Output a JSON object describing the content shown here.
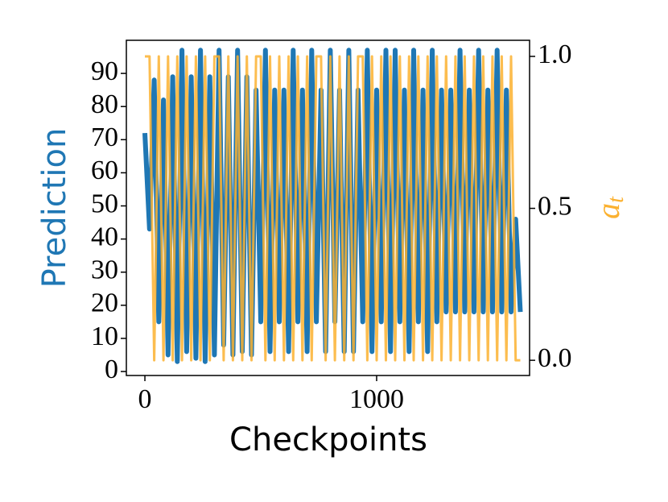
{
  "chart_data": {
    "type": "line",
    "xlabel": "Checkpoints",
    "ylabel": "Prediction",
    "y2label": [
      "a",
      "t"
    ],
    "x": [
      0,
      20,
      40,
      60,
      80,
      100,
      120,
      140,
      160,
      180,
      200,
      220,
      240,
      260,
      280,
      300,
      320,
      340,
      360,
      380,
      400,
      420,
      440,
      460,
      480,
      500,
      520,
      540,
      560,
      580,
      600,
      620,
      640,
      660,
      680,
      700,
      720,
      740,
      760,
      780,
      800,
      820,
      840,
      860,
      880,
      900,
      920,
      940,
      960,
      980,
      1000,
      1020,
      1040,
      1060,
      1080,
      1100,
      1120,
      1140,
      1160,
      1180,
      1200,
      1220,
      1240,
      1260,
      1280,
      1300,
      1320,
      1340,
      1360,
      1380,
      1400,
      1420,
      1440,
      1460,
      1480,
      1500,
      1520,
      1540,
      1560,
      1580,
      1600,
      1620
    ],
    "series": [
      {
        "name": "Prediction",
        "color": "#1f77b4",
        "values": [
          72,
          43,
          88,
          15,
          82,
          5,
          89,
          3,
          97,
          6,
          89,
          4,
          97,
          3,
          89,
          5,
          97,
          8,
          89,
          5,
          97,
          6,
          89,
          5,
          85,
          15,
          97,
          6,
          85,
          15,
          85,
          6,
          97,
          15,
          85,
          6,
          97,
          15,
          85,
          6,
          97,
          15,
          85,
          6,
          97,
          6,
          85,
          15,
          97,
          6,
          85,
          15,
          97,
          6,
          97,
          15,
          85,
          6,
          97,
          15,
          85,
          6,
          97,
          15,
          85,
          18,
          85,
          18,
          97,
          18,
          85,
          18,
          97,
          18,
          85,
          18,
          97,
          18,
          85,
          18,
          46,
          18
        ]
      },
      {
        "name": "a_t",
        "color": "#fbb130",
        "axis": "y2",
        "values": [
          1,
          1,
          0,
          1,
          0,
          1,
          0,
          1,
          0,
          1,
          0,
          1,
          0,
          1,
          0,
          1,
          1,
          0,
          1,
          0,
          1,
          0,
          1,
          0,
          1,
          1,
          0,
          1,
          0,
          1,
          0,
          1,
          0,
          1,
          0,
          1,
          0,
          1,
          1,
          0,
          1,
          0,
          1,
          0,
          1,
          0,
          1,
          1,
          0,
          1,
          0,
          1,
          0,
          1,
          0,
          1,
          0,
          1,
          0,
          1,
          0,
          1,
          0,
          1,
          0,
          1,
          0,
          1,
          0,
          1,
          0,
          1,
          0,
          1,
          0,
          1,
          0,
          1,
          0,
          1,
          0,
          0
        ]
      }
    ],
    "xlim": [
      -80,
      1660
    ],
    "xticks": [
      0,
      1000
    ],
    "ylim": [
      -1.2,
      100
    ],
    "yticks": [
      0,
      10,
      20,
      30,
      40,
      50,
      60,
      70,
      80,
      90
    ],
    "y2lim": [
      -0.05,
      1.053
    ],
    "y2ticks": [
      {
        "value": 0,
        "label": "0.0"
      },
      {
        "value": 0.5,
        "label": "0.5"
      },
      {
        "value": 1,
        "label": "1.0"
      }
    ]
  }
}
